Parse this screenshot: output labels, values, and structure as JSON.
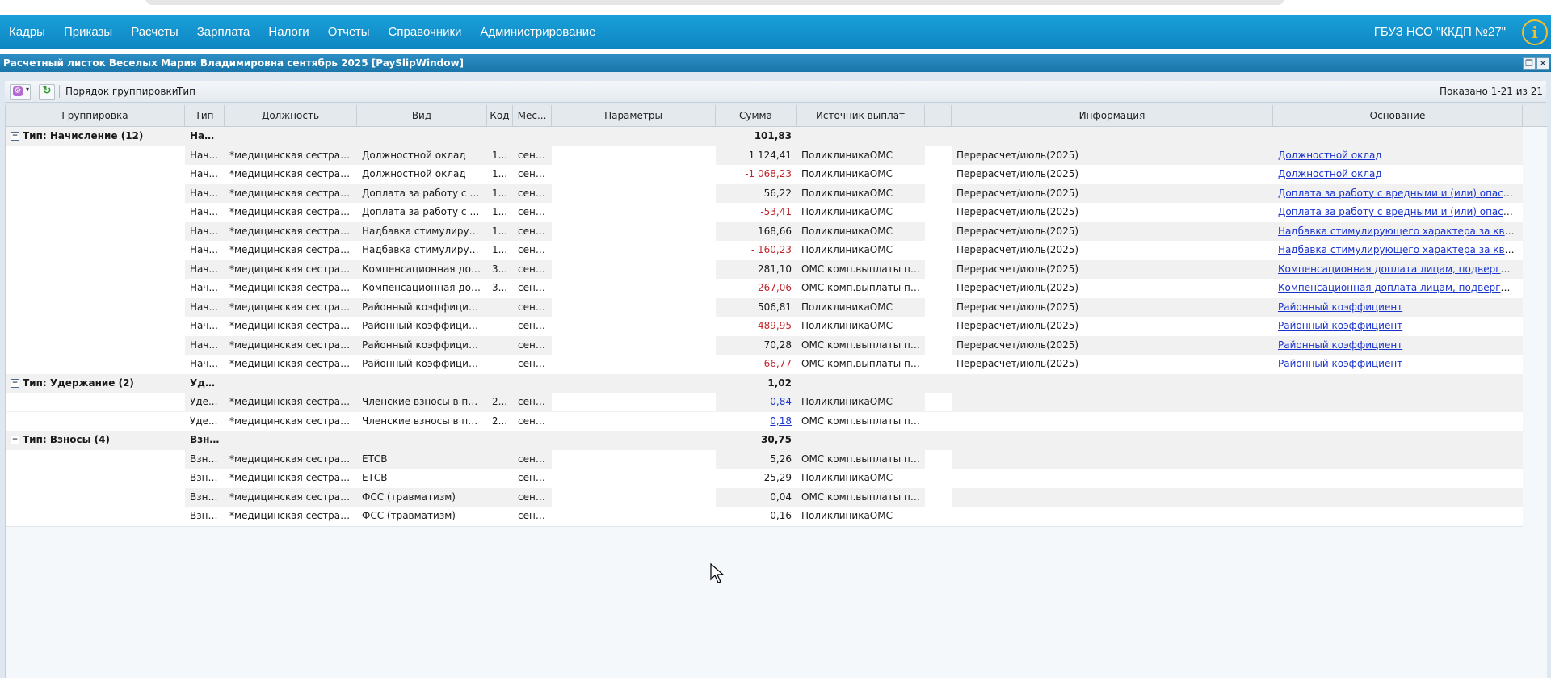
{
  "nav": {
    "items": [
      "Кадры",
      "Приказы",
      "Расчеты",
      "Зарплата",
      "Налоги",
      "Отчеты",
      "Справочники",
      "Администрирование"
    ],
    "org": "ГБУЗ НСО \"ККДП №27\"",
    "info_icon": "info-icon"
  },
  "window": {
    "title": "Расчетный листок Веселых Мария Владимировна сентябрь 2025 [PaySlipWindow]",
    "restore_icon": "restore-icon",
    "close_icon": "close-icon"
  },
  "toolbar": {
    "grouping_label": "Порядок группировки:",
    "grouping_value": "Тип",
    "shown": "Показано 1-21 из 21"
  },
  "columns": [
    "Группировка",
    "Тип",
    "Должность",
    "Вид",
    "Код",
    "Мес...",
    "Параметры",
    "Сумма",
    "Источник выплат",
    "",
    "Информация",
    "Основание"
  ],
  "groups": [
    {
      "title": "Тип: Начисление (12)",
      "type": "Нач...",
      "sum": "101,83",
      "rows": [
        {
          "type": "Нач...",
          "pos": "*медицинская сестра у...",
          "kind": "Должностной оклад",
          "code": "1...",
          "month": "сент...",
          "sum": "1 124,41",
          "neg": false,
          "src": "ПоликлиникаОМС",
          "info": "Перерасчет/июль(2025)",
          "basis": "Должностной оклад"
        },
        {
          "type": "Нач...",
          "pos": "*медицинская сестра у...",
          "kind": "Должностной оклад",
          "code": "1...",
          "month": "сент...",
          "sum": "-1 068,23",
          "neg": true,
          "src": "ПоликлиникаОМС",
          "info": "Перерасчет/июль(2025)",
          "basis": "Должностной оклад"
        },
        {
          "type": "Нач...",
          "pos": "*медицинская сестра у...",
          "kind": "Доплата за работу с вр...",
          "code": "1...",
          "month": "сент...",
          "sum": "56,22",
          "neg": false,
          "src": "ПоликлиникаОМС",
          "info": "Перерасчет/июль(2025)",
          "basis": "Доплата за работу с вредными и (или) опасными у..."
        },
        {
          "type": "Нач...",
          "pos": "*медицинская сестра у...",
          "kind": "Доплата за работу с вр...",
          "code": "1...",
          "month": "сент...",
          "sum": "-53,41",
          "neg": true,
          "src": "ПоликлиникаОМС",
          "info": "Перерасчет/июль(2025)",
          "basis": "Доплата за работу с вредными и (или) опасными у..."
        },
        {
          "type": "Нач...",
          "pos": "*медицинская сестра у...",
          "kind": "Надбавка стимулирующ...",
          "code": "1...",
          "month": "сент...",
          "sum": "168,66",
          "neg": false,
          "src": "ПоликлиникаОМС",
          "info": "Перерасчет/июль(2025)",
          "basis": "Надбавка стимулирующего характера за квалифик..."
        },
        {
          "type": "Нач...",
          "pos": "*медицинская сестра у...",
          "kind": "Надбавка стимулирующ...",
          "code": "1...",
          "month": "сент...",
          "sum": "- 160,23",
          "neg": true,
          "src": "ПоликлиникаОМС",
          "info": "Перерасчет/июль(2025)",
          "basis": "Надбавка стимулирующего характера за квалифик..."
        },
        {
          "type": "Нач...",
          "pos": "*медицинская сестра у...",
          "kind": "Компенсационная допл...",
          "code": "3...",
          "month": "сент...",
          "sum": "281,10",
          "neg": false,
          "src": "ОМС комп.выплаты по ...",
          "info": "Перерасчет/июль(2025)",
          "basis": "Компенсационная доплата лицам, подвергшимся р..."
        },
        {
          "type": "Нач...",
          "pos": "*медицинская сестра у...",
          "kind": "Компенсационная допл...",
          "code": "3...",
          "month": "сент...",
          "sum": "- 267,06",
          "neg": true,
          "src": "ОМС комп.выплаты по ...",
          "info": "Перерасчет/июль(2025)",
          "basis": "Компенсационная доплата лицам, подвергшимся р..."
        },
        {
          "type": "Нач...",
          "pos": "*медицинская сестра у...",
          "kind": "Районный коэффициент",
          "code": "",
          "month": "сент...",
          "sum": "506,81",
          "neg": false,
          "src": "ПоликлиникаОМС",
          "info": "Перерасчет/июль(2025)",
          "basis": "Районный коэффициент"
        },
        {
          "type": "Нач...",
          "pos": "*медицинская сестра у...",
          "kind": "Районный коэффициент",
          "code": "",
          "month": "сент...",
          "sum": "- 489,95",
          "neg": true,
          "src": "ПоликлиникаОМС",
          "info": "Перерасчет/июль(2025)",
          "basis": "Районный коэффициент"
        },
        {
          "type": "Нач...",
          "pos": "*медицинская сестра у...",
          "kind": "Районный коэффициент",
          "code": "",
          "month": "сент...",
          "sum": "70,28",
          "neg": false,
          "src": "ОМС комп.выплаты по ...",
          "info": "Перерасчет/июль(2025)",
          "basis": "Районный коэффициент"
        },
        {
          "type": "Нач...",
          "pos": "*медицинская сестра у...",
          "kind": "Районный коэффициент",
          "code": "",
          "month": "сент...",
          "sum": "-66,77",
          "neg": true,
          "src": "ОМС комп.выплаты по ...",
          "info": "Перерасчет/июль(2025)",
          "basis": "Районный коэффициент"
        }
      ]
    },
    {
      "title": "Тип: Удержание (2)",
      "type": "Уде...",
      "sum": "1,02",
      "rows": [
        {
          "type": "Уде...",
          "pos": "*медицинская сестра у...",
          "kind": "Членские взносы в про...",
          "code": "2...",
          "month": "сент...",
          "sum": "0,84",
          "neg": false,
          "link": true,
          "src": "ПоликлиникаОМС",
          "info": "",
          "basis": ""
        },
        {
          "type": "Уде...",
          "pos": "*медицинская сестра у...",
          "kind": "Членские взносы в про...",
          "code": "2...",
          "month": "сент...",
          "sum": "0,18",
          "neg": false,
          "link": true,
          "src": "ОМС комп.выплаты по ...",
          "info": "",
          "basis": ""
        }
      ]
    },
    {
      "title": "Тип: Взносы (4)",
      "type": "Взн...",
      "sum": "30,75",
      "rows": [
        {
          "type": "Взно...",
          "pos": "*медицинская сестра у...",
          "kind": "ЕТСВ",
          "code": "",
          "month": "сент...",
          "sum": "5,26",
          "neg": false,
          "src": "ОМС комп.выплаты по ...",
          "info": "",
          "basis": ""
        },
        {
          "type": "Взно...",
          "pos": "*медицинская сестра у...",
          "kind": "ЕТСВ",
          "code": "",
          "month": "сент...",
          "sum": "25,29",
          "neg": false,
          "src": "ПоликлиникаОМС",
          "info": "",
          "basis": ""
        },
        {
          "type": "Взно...",
          "pos": "*медицинская сестра у...",
          "kind": "ФСС (травматизм)",
          "code": "",
          "month": "сент...",
          "sum": "0,04",
          "neg": false,
          "src": "ОМС комп.выплаты по ...",
          "info": "",
          "basis": ""
        },
        {
          "type": "Взно...",
          "pos": "*медицинская сестра у...",
          "kind": "ФСС (травматизм)",
          "code": "",
          "month": "сент...",
          "sum": "0,16",
          "neg": false,
          "src": "ПоликлиникаОМС",
          "info": "",
          "basis": ""
        }
      ]
    }
  ]
}
